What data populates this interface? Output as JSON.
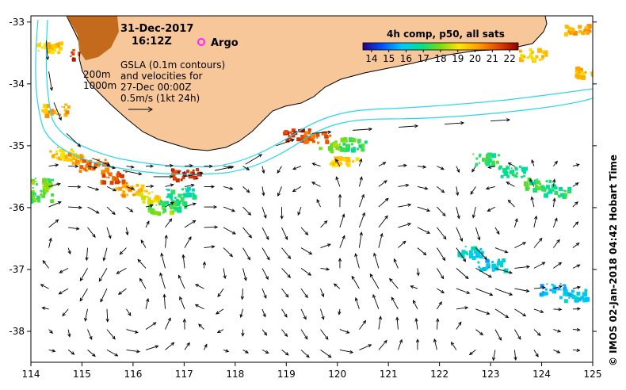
{
  "header": {
    "date": "31-Dec-2017",
    "time": "16:12Z",
    "argo_label": "Argo"
  },
  "annotations": {
    "contour_200": "200m",
    "contour_1000": "1000m",
    "gsla_line1": "GSLA (0.1m contours)",
    "gsla_line2": "and velocities for",
    "gsla_line3": "27-Dec 00:00Z",
    "scale_label": "0.5m/s (1kt 24h)"
  },
  "colorbar": {
    "title": "4h comp, p50, all sats",
    "ticks": [
      "14",
      "15",
      "16",
      "17",
      "18",
      "19",
      "20",
      "21",
      "22"
    ],
    "min": 13.5,
    "max": 22.5
  },
  "axes": {
    "x_ticks": [
      "114",
      "115",
      "116",
      "117",
      "118",
      "119",
      "120",
      "121",
      "122",
      "123",
      "124",
      "125"
    ],
    "y_ticks": [
      "-33",
      "-34",
      "-35",
      "-36",
      "-37",
      "-38"
    ],
    "lon_range": [
      114,
      125
    ],
    "lat_range": [
      -38.5,
      -32.9
    ]
  },
  "credit": "© IMOS 02-Jan-2018 04:42 Hobart Time",
  "colors": {
    "land": "#f7c79a",
    "coast": "#000000",
    "isobath": "#27d7e8",
    "arrow": "#000000",
    "argo": "#ff22ff"
  },
  "sst_patches": [
    {
      "lon": 114.15,
      "lat": -35.8,
      "temp": 17.5
    },
    {
      "lon": 114.25,
      "lat": -35.6,
      "temp": 17.8
    },
    {
      "lon": 114.6,
      "lat": -35.1,
      "temp": 19.5
    },
    {
      "lon": 114.9,
      "lat": -35.2,
      "temp": 20.0
    },
    {
      "lon": 115.2,
      "lat": -35.3,
      "temp": 20.8
    },
    {
      "lon": 115.6,
      "lat": -35.5,
      "temp": 21.2
    },
    {
      "lon": 115.9,
      "lat": -35.7,
      "temp": 20.0
    },
    {
      "lon": 116.3,
      "lat": -35.8,
      "temp": 19.2
    },
    {
      "lon": 116.55,
      "lat": -36.0,
      "temp": 18.0
    },
    {
      "lon": 116.75,
      "lat": -35.95,
      "temp": 17.0
    },
    {
      "lon": 116.9,
      "lat": -35.75,
      "temp": 16.8
    },
    {
      "lon": 117.0,
      "lat": -35.45,
      "temp": 21.8
    },
    {
      "lon": 115.0,
      "lat": -33.5,
      "temp": 21.5
    },
    {
      "lon": 114.3,
      "lat": -33.4,
      "temp": 19.5
    },
    {
      "lon": 114.45,
      "lat": -34.4,
      "temp": 20.0
    },
    {
      "lon": 119.2,
      "lat": -34.8,
      "temp": 21.8
    },
    {
      "lon": 119.6,
      "lat": -34.85,
      "temp": 21.0
    },
    {
      "lon": 119.9,
      "lat": -35.0,
      "temp": 18.0
    },
    {
      "lon": 120.3,
      "lat": -34.95,
      "temp": 17.4
    },
    {
      "lon": 120.1,
      "lat": -35.2,
      "temp": 19.5
    },
    {
      "lon": 122.9,
      "lat": -35.2,
      "temp": 17.2
    },
    {
      "lon": 123.4,
      "lat": -35.4,
      "temp": 16.8
    },
    {
      "lon": 123.9,
      "lat": -35.6,
      "temp": 17.4
    },
    {
      "lon": 124.3,
      "lat": -35.7,
      "temp": 17.0
    },
    {
      "lon": 122.6,
      "lat": -36.7,
      "temp": 16.2
    },
    {
      "lon": 123.0,
      "lat": -36.9,
      "temp": 15.8
    },
    {
      "lon": 124.2,
      "lat": -37.3,
      "temp": 15.6
    },
    {
      "lon": 124.6,
      "lat": -37.4,
      "temp": 15.9
    },
    {
      "lon": 124.7,
      "lat": -33.1,
      "temp": 20.0
    },
    {
      "lon": 124.9,
      "lat": -33.8,
      "temp": 19.8
    },
    {
      "lon": 123.8,
      "lat": -33.5,
      "temp": 19.4
    }
  ]
}
